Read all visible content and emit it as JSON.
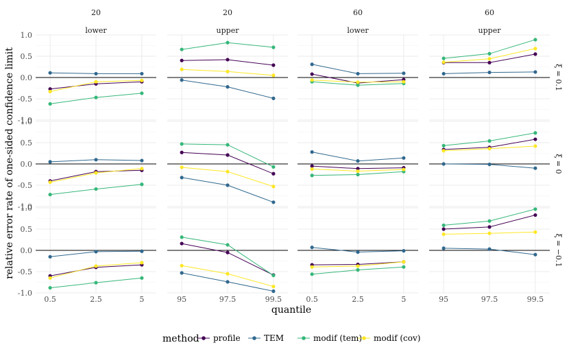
{
  "chart_data": {
    "type": "line",
    "xlabel": "quantile",
    "ylabel": "relative error rate of one-sided confidence limit",
    "ylim": [
      -1,
      1
    ],
    "yticks": [
      "1.0",
      "0.5",
      "0.0",
      "-0.5",
      "-1.0"
    ],
    "ytick_values": [
      1,
      0.5,
      0,
      -0.5,
      -1
    ],
    "reference_line": 0,
    "grid": true,
    "legend": {
      "title": "method",
      "placement": "bottom",
      "entries": [
        {
          "name": "profile",
          "color": "#440154"
        },
        {
          "name": "TEM",
          "color": "#31688e"
        },
        {
          "name": "modif (tem)",
          "color": "#35b779"
        },
        {
          "name": "modif (cov)",
          "color": "#fde725"
        }
      ]
    },
    "col_strips": [
      {
        "n": "20",
        "side": "lower",
        "xticks": [
          "0.5",
          "2.5",
          "5"
        ]
      },
      {
        "n": "20",
        "side": "upper",
        "xticks": [
          "95",
          "97.5",
          "99.5"
        ]
      },
      {
        "n": "60",
        "side": "lower",
        "xticks": [
          "0.5",
          "2.5",
          "5"
        ]
      },
      {
        "n": "60",
        "side": "upper",
        "xticks": [
          "95",
          "97.5",
          "99.5"
        ]
      }
    ],
    "row_strips": [
      "ξ = 0.1",
      "ξ = 0",
      "ξ = −0.1"
    ],
    "panels": [
      [
        {
          "series": [
            [
              -0.27,
              -0.15,
              -0.1
            ],
            [
              0.11,
              0.09,
              0.09
            ],
            [
              -0.62,
              -0.47,
              -0.37
            ],
            [
              -0.33,
              -0.1,
              -0.07
            ]
          ]
        },
        {
          "series": [
            [
              0.4,
              0.42,
              0.29
            ],
            [
              -0.06,
              -0.22,
              -0.49
            ],
            [
              0.66,
              0.82,
              0.71
            ],
            [
              0.19,
              0.14,
              0.05
            ]
          ]
        },
        {
          "series": [
            [
              0.08,
              -0.13,
              -0.05
            ],
            [
              0.31,
              0.09,
              0.1
            ],
            [
              -0.1,
              -0.18,
              -0.14
            ],
            [
              -0.06,
              -0.11,
              -0.1
            ]
          ]
        },
        {
          "series": [
            [
              0.35,
              0.35,
              0.55
            ],
            [
              0.09,
              0.12,
              0.13
            ],
            [
              0.45,
              0.56,
              0.89
            ],
            [
              0.36,
              0.44,
              0.68
            ]
          ]
        }
      ],
      [
        {
          "series": [
            [
              -0.4,
              -0.18,
              -0.15
            ],
            [
              0.05,
              0.1,
              0.08
            ],
            [
              -0.72,
              -0.59,
              -0.48
            ],
            [
              -0.43,
              -0.21,
              -0.11
            ]
          ]
        },
        {
          "series": [
            [
              0.27,
              0.21,
              -0.23
            ],
            [
              -0.32,
              -0.5,
              -0.9
            ],
            [
              0.47,
              0.45,
              -0.07
            ],
            [
              -0.08,
              -0.18,
              -0.53
            ]
          ]
        },
        {
          "series": [
            [
              -0.05,
              -0.11,
              -0.09
            ],
            [
              0.28,
              0.07,
              0.14
            ],
            [
              -0.27,
              -0.25,
              -0.18
            ],
            [
              -0.12,
              -0.17,
              -0.13
            ]
          ]
        },
        {
          "series": [
            [
              0.34,
              0.39,
              0.58
            ],
            [
              0.0,
              -0.01,
              -0.1
            ],
            [
              0.43,
              0.54,
              0.73
            ],
            [
              0.31,
              0.36,
              0.42
            ]
          ]
        }
      ],
      [
        {
          "series": [
            [
              -0.6,
              -0.4,
              -0.34
            ],
            [
              -0.15,
              -0.03,
              -0.02
            ],
            [
              -0.88,
              -0.76,
              -0.65
            ],
            [
              -0.65,
              -0.37,
              -0.29
            ]
          ]
        },
        {
          "series": [
            [
              0.16,
              -0.05,
              -0.58
            ],
            [
              -0.53,
              -0.74,
              -0.96
            ],
            [
              0.31,
              0.13,
              -0.59
            ],
            [
              -0.36,
              -0.55,
              -0.85
            ]
          ]
        },
        {
          "series": [
            [
              -0.34,
              -0.33,
              -0.27
            ],
            [
              0.07,
              -0.04,
              -0.01
            ],
            [
              -0.56,
              -0.46,
              -0.39
            ],
            [
              -0.39,
              -0.37,
              -0.27
            ]
          ]
        },
        {
          "series": [
            [
              0.5,
              0.55,
              0.83
            ],
            [
              0.05,
              0.03,
              -0.1
            ],
            [
              0.59,
              0.69,
              0.97
            ],
            [
              0.38,
              0.4,
              0.43
            ]
          ]
        }
      ]
    ]
  }
}
